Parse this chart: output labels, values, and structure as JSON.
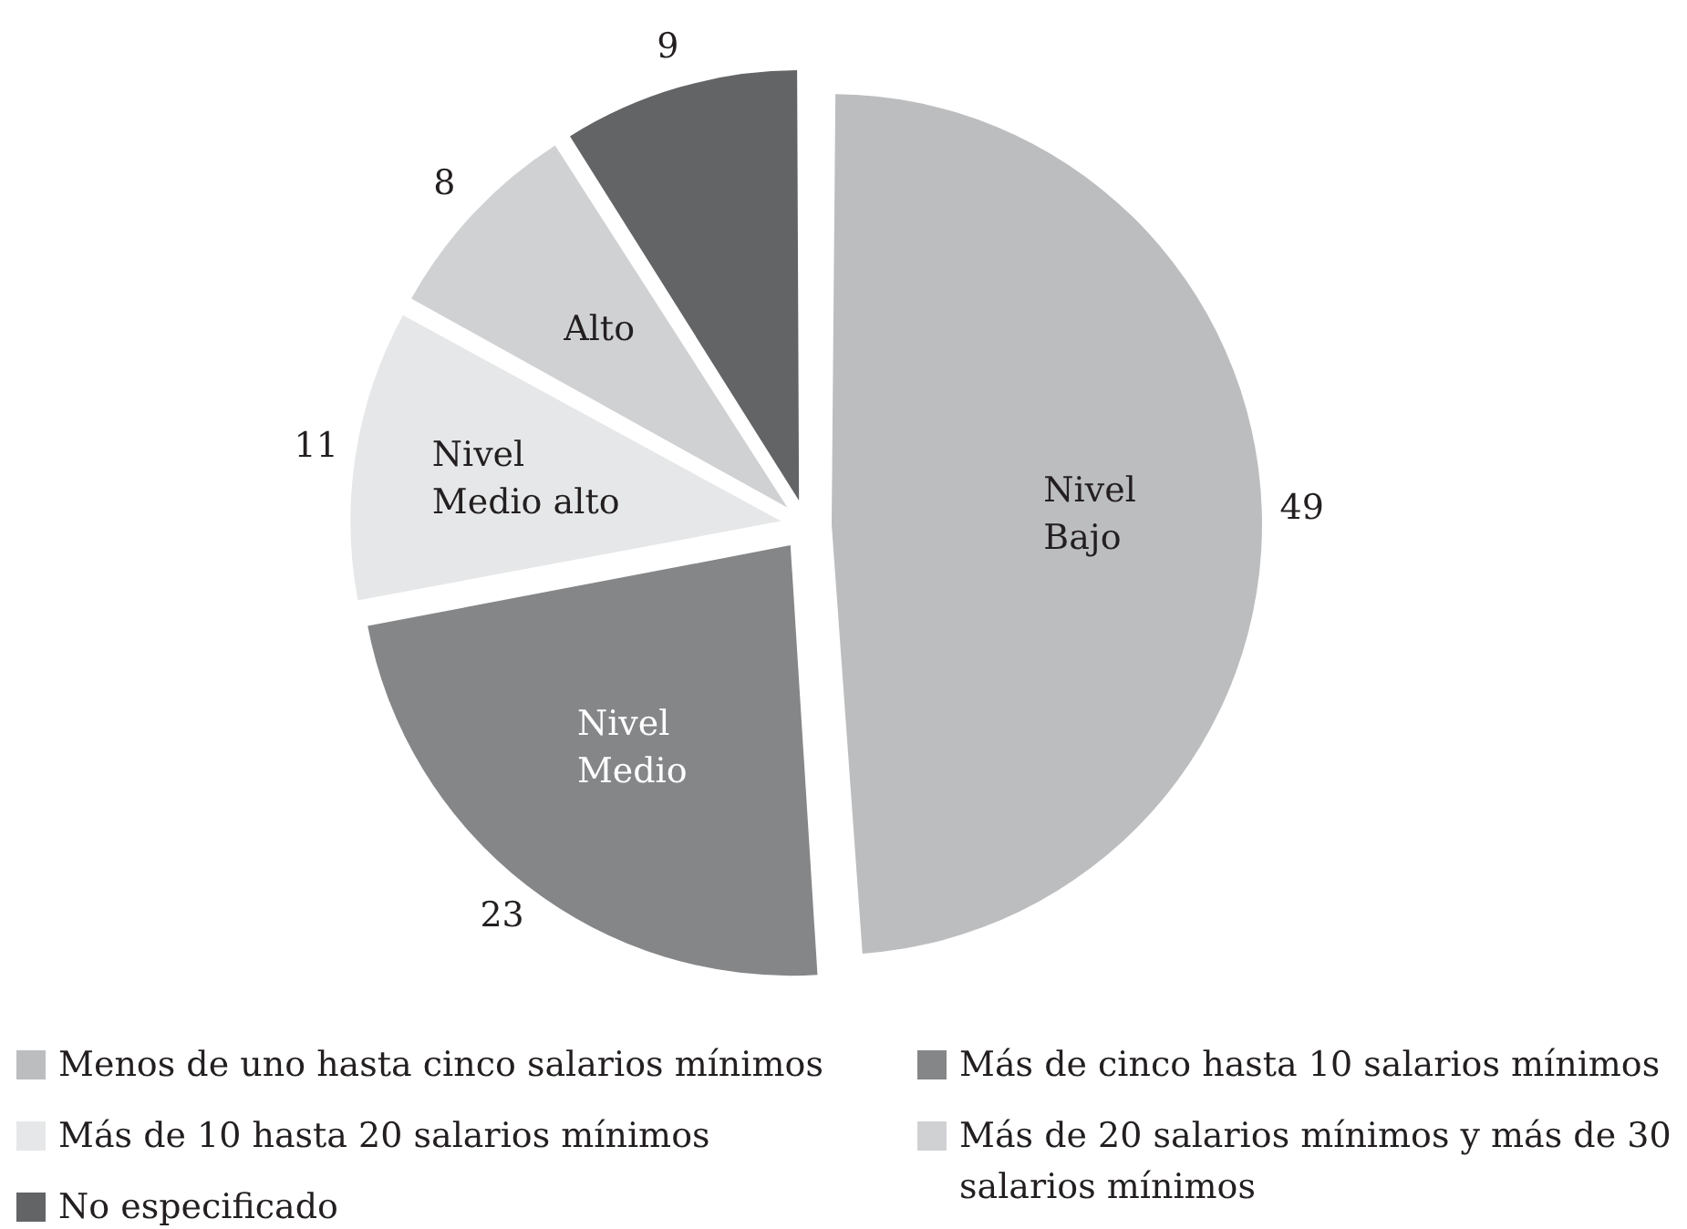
{
  "chart_data": {
    "type": "pie",
    "categories": [
      "Menos de uno hasta cinco salarios mínimos",
      "Más de cinco hasta 10 salarios mínimos",
      "Más de 10 hasta 20 salarios mínimos",
      "Más de 20 salarios mínimos y más de 30 salarios mínimos",
      "No especificado"
    ],
    "values": [
      49,
      23,
      11,
      8,
      9
    ],
    "colors": [
      "#bcbdbf",
      "#858688",
      "#e6e7e8",
      "#d0d1d3",
      "#636466"
    ],
    "data_labels": true,
    "legend": "bottom",
    "annotations": [
      {
        "text": "Nivel Bajo",
        "x": "Menos de uno hasta cinco salarios mínimos"
      },
      {
        "text": "Nivel Medio",
        "x": "Más de cinco hasta 10 salarios mínimos"
      },
      {
        "text": "Nivel Medio alto",
        "x": "Más de 10 hasta 20 salarios mínimos"
      },
      {
        "text": "Alto",
        "x": "Más de 20 salarios mínimos y más de 30 salarios mínimos"
      }
    ]
  }
}
